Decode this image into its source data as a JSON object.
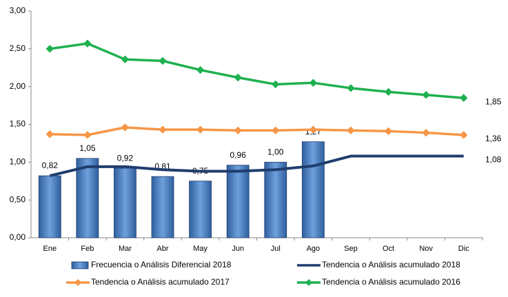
{
  "chart_data": {
    "type": "bar",
    "categories": [
      "Ene",
      "Feb",
      "Mar",
      "Abr",
      "May",
      "Jun",
      "Jul",
      "Ago",
      "Sep",
      "Oct",
      "Nov",
      "Dic"
    ],
    "series": [
      {
        "name": "Frecuencia o Análisis Diferencial 2018",
        "type": "bar",
        "color": "#4a7fc1",
        "values": [
          0.82,
          1.05,
          0.92,
          0.81,
          0.75,
          0.96,
          1.0,
          1.27,
          null,
          null,
          null,
          null
        ],
        "value_labels": [
          "0,82",
          "1,05",
          "0,92",
          "0,81",
          "0,75",
          "0,96",
          "1,00",
          "1,27",
          null,
          null,
          null,
          null
        ]
      },
      {
        "name": "Tendencia o Análisis acumulado 2018",
        "type": "line",
        "color": "#1f3d6e",
        "marker": "none",
        "values": [
          0.82,
          0.94,
          0.94,
          0.9,
          0.88,
          0.88,
          0.9,
          0.95,
          1.08,
          1.08,
          1.08,
          1.08
        ],
        "value_labels": [
          null,
          null,
          null,
          null,
          null,
          null,
          null,
          null,
          null,
          null,
          null,
          "1,08"
        ]
      },
      {
        "name": "Tendencia o Análisis acumulado 2017",
        "type": "line",
        "color": "#f79646",
        "marker": "diamond",
        "values": [
          1.37,
          1.36,
          1.46,
          1.43,
          1.43,
          1.42,
          1.42,
          1.43,
          1.42,
          1.41,
          1.39,
          1.36
        ],
        "value_labels": [
          null,
          null,
          null,
          null,
          null,
          null,
          null,
          null,
          null,
          null,
          null,
          "1,36"
        ]
      },
      {
        "name": "Tendencia o Análisis acumulado 2016",
        "type": "line",
        "color": "#1fb050",
        "marker": "diamond",
        "values": [
          2.5,
          2.57,
          2.36,
          2.34,
          2.22,
          2.12,
          2.03,
          2.05,
          1.98,
          1.93,
          1.89,
          1.85
        ],
        "value_labels": [
          null,
          null,
          null,
          null,
          null,
          null,
          null,
          null,
          null,
          null,
          null,
          "1,85"
        ]
      }
    ],
    "ylim": [
      0,
      3
    ],
    "yticks": [
      {
        "value": 0,
        "label": "0,00"
      },
      {
        "value": 0.5,
        "label": "0,50"
      },
      {
        "value": 1,
        "label": "1,00"
      },
      {
        "value": 1.5,
        "label": "1,50"
      },
      {
        "value": 2,
        "label": "2,00"
      },
      {
        "value": 2.5,
        "label": "2,50"
      },
      {
        "value": 3,
        "label": "3,00"
      }
    ],
    "grid": false,
    "legend": "bottom"
  }
}
